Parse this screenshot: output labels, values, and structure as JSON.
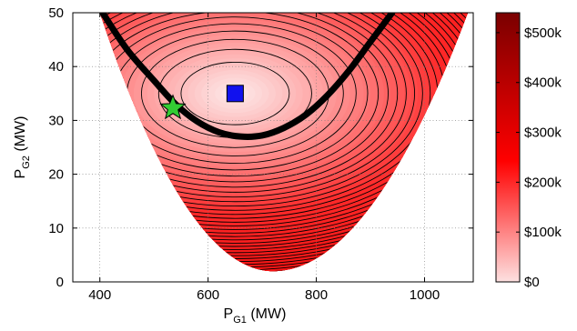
{
  "chart_data": {
    "type": "heatmap",
    "title": "",
    "xlabel": {
      "main": "P",
      "sub": "G1",
      "unit": " (MW)"
    },
    "ylabel": {
      "main": "P",
      "sub": "G2",
      "unit": " (MW)"
    },
    "xlim": [
      350,
      1090
    ],
    "ylim": [
      0,
      50
    ],
    "x_ticks": [
      400,
      600,
      800,
      1000
    ],
    "x_tick_labels": [
      "400",
      "600",
      "800",
      "1000"
    ],
    "y_ticks": [
      0,
      10,
      20,
      30,
      40,
      50
    ],
    "y_tick_labels": [
      "0",
      "10",
      "20",
      "30",
      "40",
      "50"
    ],
    "grid": true,
    "colorbar": {
      "min": 0,
      "max": 540000,
      "ticks": [
        0,
        100000,
        200000,
        300000,
        400000,
        500000
      ],
      "tick_labels": [
        "$0",
        "$100k",
        "$200k",
        "$300k",
        "$400k",
        "$500k"
      ],
      "colors": [
        "#fde0e0",
        "#ff0000",
        "#7a0000"
      ]
    },
    "feasible_region": {
      "bottom_vertex": [
        720,
        2
      ],
      "left_top": [
        400,
        50
      ],
      "right_top": [
        1080,
        50
      ]
    },
    "cost_function": {
      "center": [
        650,
        35
      ],
      "ellipse_axes_per_level": [
        100,
        5.8
      ],
      "contour_count": 40
    },
    "constraint_curve": {
      "color": "#000000",
      "points": [
        [
          405,
          50
        ],
        [
          450,
          43.2
        ],
        [
          500,
          37.4
        ],
        [
          540,
          33
        ],
        [
          580,
          29.8
        ],
        [
          620,
          27.8
        ],
        [
          660,
          27
        ],
        [
          700,
          27.2
        ],
        [
          740,
          28.6
        ],
        [
          780,
          31
        ],
        [
          820,
          34.6
        ],
        [
          860,
          39.2
        ],
        [
          900,
          44.6
        ],
        [
          940,
          50
        ]
      ]
    },
    "markers": [
      {
        "label": "optimal-point",
        "shape": "star",
        "x": 535,
        "y": 32.3,
        "color": "#33cc33"
      },
      {
        "label": "unconstrained-minimum",
        "shape": "square",
        "x": 650,
        "y": 35,
        "color": "#1111ee"
      }
    ]
  }
}
